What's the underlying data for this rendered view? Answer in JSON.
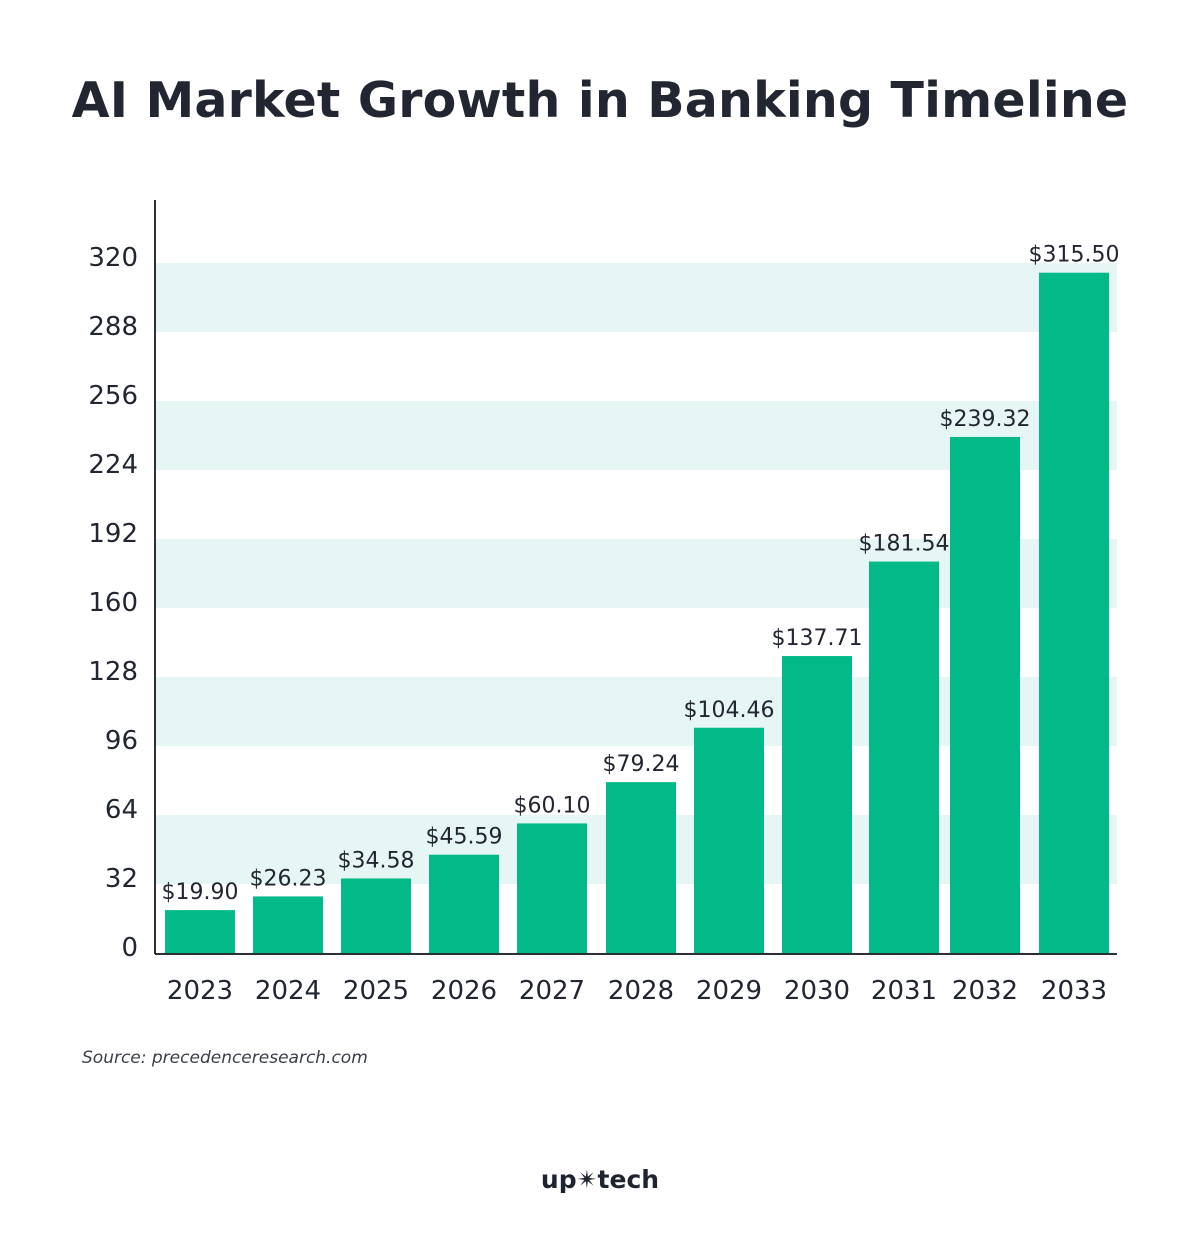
{
  "chart_data": {
    "type": "bar",
    "title": "AI Market Growth in Banking Timeline",
    "categories": [
      "2023",
      "2024",
      "2025",
      "2026",
      "2027",
      "2028",
      "2029",
      "2030",
      "2031",
      "2032",
      "2033"
    ],
    "values": [
      19.9,
      26.23,
      34.58,
      45.59,
      60.1,
      79.24,
      104.46,
      137.71,
      181.54,
      239.32,
      315.5
    ],
    "data_labels": [
      "$19.90",
      "$26.23",
      "$34.58",
      "$45.59",
      "$60.10",
      "$79.24",
      "$104.46",
      "$137.71",
      "$181.54",
      "$239.32",
      "$315.50"
    ],
    "yticks": [
      0,
      32,
      64,
      96,
      128,
      160,
      192,
      224,
      256,
      288,
      320
    ],
    "ylim": [
      0,
      320
    ],
    "xlabel": "",
    "ylabel": "",
    "grid": "alternating horizontal bands",
    "legend": "none"
  },
  "colors": {
    "bar": "#02ba87",
    "band": "#e6f6f4",
    "axis": "#2b2f36",
    "text": "#212630"
  },
  "source": "Source: precedenceresearch.com",
  "brand": "up✴tech"
}
